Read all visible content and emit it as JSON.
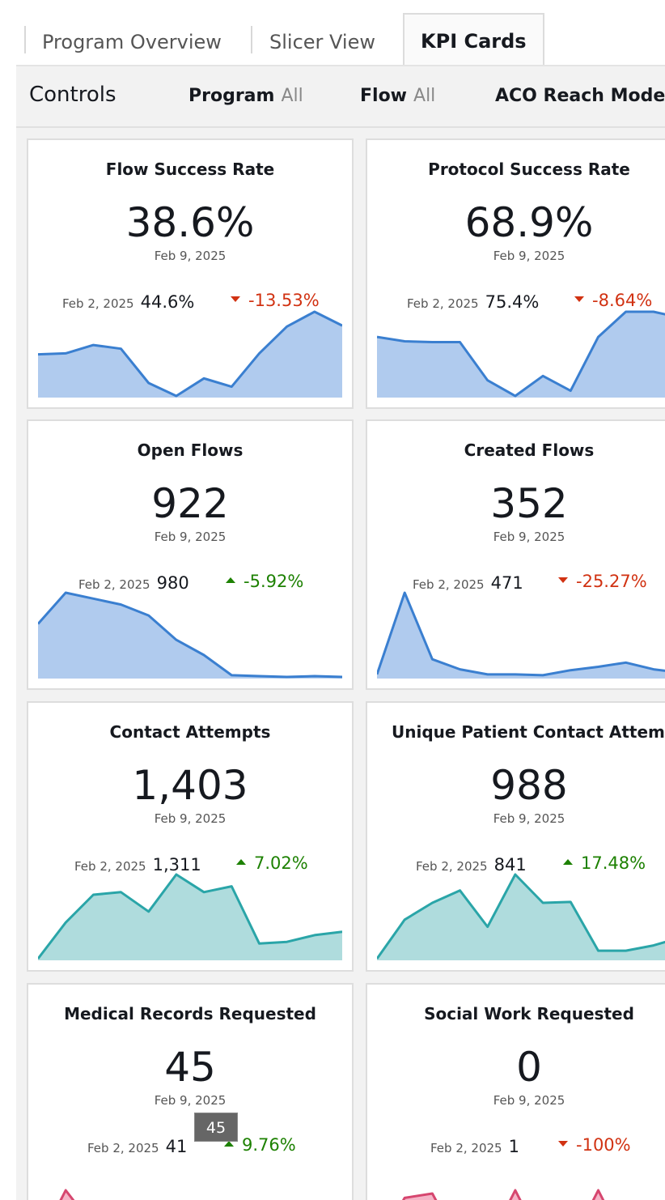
{
  "tabs": [
    {
      "label": "Program Overview",
      "active": false
    },
    {
      "label": "Slicer View",
      "active": false
    },
    {
      "label": "KPI Cards",
      "active": true
    }
  ],
  "controls": {
    "title": "Controls",
    "filters": [
      {
        "label": "Program",
        "value": "All"
      },
      {
        "label": "Flow",
        "value": "All"
      },
      {
        "label": "ACO Reach Model",
        "value": ""
      }
    ]
  },
  "colors": {
    "blue_line": "#3a7fd0",
    "blue_fill": "#b0cbee",
    "teal_line": "#2aa5a8",
    "teal_fill": "#afdcdd",
    "pink_line": "#d6466f",
    "pink_fill": "#f5b4c7"
  },
  "cards": [
    {
      "title": "Flow Success Rate",
      "value": "38.6%",
      "date": "Feb 9, 2025",
      "compare_date": "Feb 2, 2025",
      "compare_value": "44.6%",
      "delta": "-13.53%",
      "trend": "down",
      "color": "blue",
      "series": [
        45,
        46,
        55,
        51,
        14,
        0,
        19,
        10,
        46,
        75,
        91,
        76
      ]
    },
    {
      "title": "Protocol Success Rate",
      "value": "68.9%",
      "date": "Feb 9, 2025",
      "compare_date": "Feb 2, 2025",
      "compare_value": "75.4%",
      "delta": "-8.64%",
      "trend": "down",
      "color": "blue",
      "series": [
        68,
        63,
        62,
        62,
        18,
        0,
        23,
        6,
        68,
        97,
        97,
        90
      ]
    },
    {
      "title": "Open Flows",
      "value": "922",
      "date": "Feb 9, 2025",
      "compare_date": "Feb 2, 2025",
      "compare_value": "980",
      "delta": "-5.92%",
      "trend": "up",
      "color": "blue",
      "series": [
        63,
        100,
        93,
        86,
        73,
        44,
        26,
        2,
        1,
        0,
        1,
        0
      ]
    },
    {
      "title": "Created Flows",
      "value": "352",
      "date": "Feb 9, 2025",
      "compare_date": "Feb 2, 2025",
      "compare_value": "471",
      "delta": "-25.27%",
      "trend": "down",
      "color": "blue",
      "series": [
        3,
        100,
        21,
        9,
        3,
        3,
        2,
        8,
        12,
        17,
        9,
        5
      ]
    },
    {
      "title": "Contact Attempts",
      "value": "1,403",
      "date": "Feb 9, 2025",
      "compare_date": "Feb 2, 2025",
      "compare_value": "1,311",
      "delta": "7.02%",
      "trend": "up",
      "color": "teal",
      "series": [
        0,
        43,
        76,
        79,
        56,
        100,
        79,
        86,
        18,
        20,
        28,
        32
      ]
    },
    {
      "title": "Unique Patient Contact Attempts",
      "value": "988",
      "date": "Feb 9, 2025",
      "compare_date": "Feb 2, 2025",
      "compare_value": "841",
      "delta": "17.48%",
      "trend": "up",
      "color": "teal",
      "series": [
        0,
        44,
        63,
        77,
        36,
        95,
        63,
        64,
        9,
        9,
        15,
        24
      ]
    },
    {
      "title": "Medical Records Requested",
      "value": "45",
      "date": "Feb 9, 2025",
      "compare_date": "Feb 2, 2025",
      "compare_value": "41",
      "delta": "9.76%",
      "trend": "up",
      "color": "pink",
      "series": [
        5,
        55,
        22,
        35,
        8,
        5,
        25,
        12,
        5,
        15,
        22,
        30
      ]
    },
    {
      "title": "Social Work Requested",
      "value": "0",
      "date": "Feb 9, 2025",
      "compare_date": "Feb 2, 2025",
      "compare_value": "1",
      "delta": "-100%",
      "trend": "down",
      "color": "pink",
      "series": [
        5,
        48,
        52,
        5,
        5,
        55,
        5,
        5,
        55,
        5,
        5,
        5
      ]
    }
  ],
  "tooltip": {
    "text": "45"
  }
}
